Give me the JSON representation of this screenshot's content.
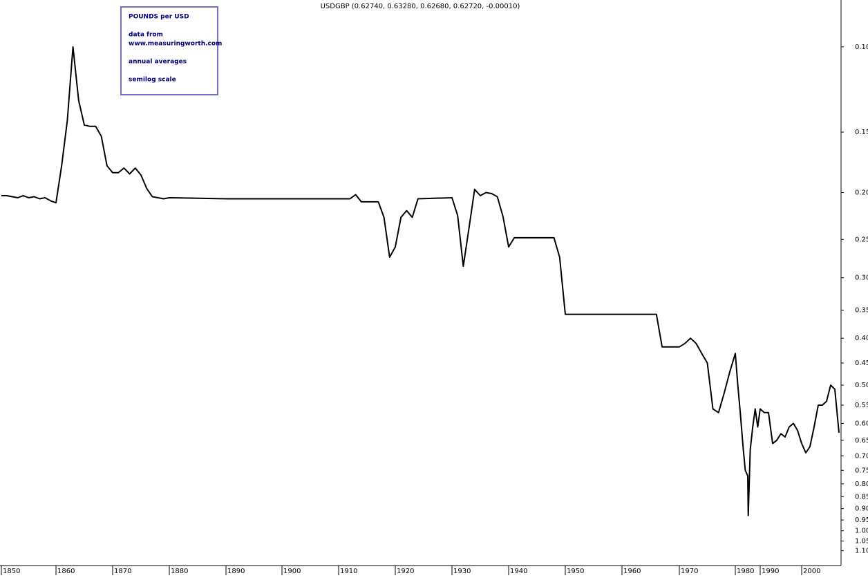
{
  "chart_data": {
    "type": "line",
    "title": "USDGBP (0.62740, 0.63280, 0.62680, 0.62720, -0.00010)",
    "annotations": [
      "POUNDS per USD",
      "data from",
      "www.measuringworth.com",
      "annual averages",
      "semilog scale"
    ],
    "log_scale": true,
    "y_reversed": true,
    "color": "#000000",
    "xlim": [
      1850,
      2009
    ],
    "xticks": [
      1850,
      1860,
      1870,
      1880,
      1890,
      1900,
      1910,
      1920,
      1930,
      1940,
      1950,
      1960,
      1970,
      1980,
      1990,
      2000
    ],
    "ylim": [
      0.08,
      1.18
    ],
    "yticks": [
      {
        "value": 0.1,
        "label": "0.10"
      },
      0.15,
      {
        "value": 0.2,
        "label": "0.20"
      },
      0.25,
      {
        "value": 0.3,
        "label": "0.30"
      },
      0.35,
      {
        "value": 0.4,
        "label": "0.40"
      },
      0.45,
      {
        "value": 0.5,
        "label": "0.50"
      },
      0.55,
      {
        "value": 0.6,
        "label": "0.60"
      },
      0.65,
      {
        "value": 0.7,
        "label": "0.70"
      },
      0.75,
      {
        "value": 0.8,
        "label": "0.80"
      },
      0.85,
      {
        "value": 0.9,
        "label": "0.90"
      },
      0.95,
      {
        "value": 1.0,
        "label": "1.00"
      },
      1.05,
      {
        "value": 1.1,
        "label": "1.10"
      }
    ],
    "x": [
      1850,
      1851,
      1852,
      1853,
      1854,
      1855,
      1856,
      1857,
      1858,
      1859,
      1860,
      1861,
      1862,
      1863,
      1864,
      1865,
      1866,
      1867,
      1868,
      1869,
      1870,
      1871,
      1872,
      1873,
      1874,
      1875,
      1876,
      1877,
      1878,
      1879,
      1880,
      1890,
      1900,
      1912,
      1913,
      1914,
      1917,
      1918,
      1919,
      1920,
      1921,
      1922,
      1923,
      1924,
      1930,
      1931,
      1932,
      1933,
      1934,
      1935,
      1936,
      1937,
      1938,
      1939,
      1940,
      1941,
      1948,
      1949,
      1950,
      1966,
      1967,
      1970,
      1971,
      1972,
      1973,
      1974,
      1975,
      1976,
      1977,
      1978,
      1979,
      1980,
      1981,
      1982,
      1983,
      1984,
      1985,
      1985.2,
      1986,
      1987,
      1988,
      1989,
      1990,
      1991,
      1992,
      1993,
      1994,
      1995,
      1996,
      1997,
      1998,
      1999,
      2000,
      2001,
      2002,
      2003,
      2004,
      2005,
      2006,
      2007,
      2008,
      2009
    ],
    "values": [
      0.203,
      0.203,
      0.204,
      0.205,
      0.203,
      0.205,
      0.204,
      0.206,
      0.205,
      0.208,
      0.21,
      0.176,
      0.142,
      0.1,
      0.129,
      0.145,
      0.146,
      0.146,
      0.153,
      0.176,
      0.182,
      0.182,
      0.178,
      0.183,
      0.178,
      0.184,
      0.196,
      0.204,
      0.205,
      0.206,
      0.205,
      0.206,
      0.206,
      0.206,
      0.202,
      0.209,
      0.209,
      0.225,
      0.272,
      0.259,
      0.225,
      0.218,
      0.225,
      0.206,
      0.205,
      0.223,
      0.284,
      0.237,
      0.197,
      0.203,
      0.2,
      0.201,
      0.204,
      0.224,
      0.259,
      0.248,
      0.248,
      0.272,
      0.357,
      0.357,
      0.417,
      0.417,
      0.41,
      0.4,
      0.41,
      0.43,
      0.45,
      0.56,
      0.57,
      0.52,
      0.47,
      0.43,
      0.5,
      0.57,
      0.66,
      0.75,
      0.77,
      0.93,
      0.68,
      0.61,
      0.56,
      0.61,
      0.56,
      0.57,
      0.57,
      0.66,
      0.65,
      0.63,
      0.64,
      0.61,
      0.6,
      0.62,
      0.66,
      0.69,
      0.67,
      0.61,
      0.55,
      0.55,
      0.54,
      0.5,
      0.51,
      0.627
    ]
  }
}
